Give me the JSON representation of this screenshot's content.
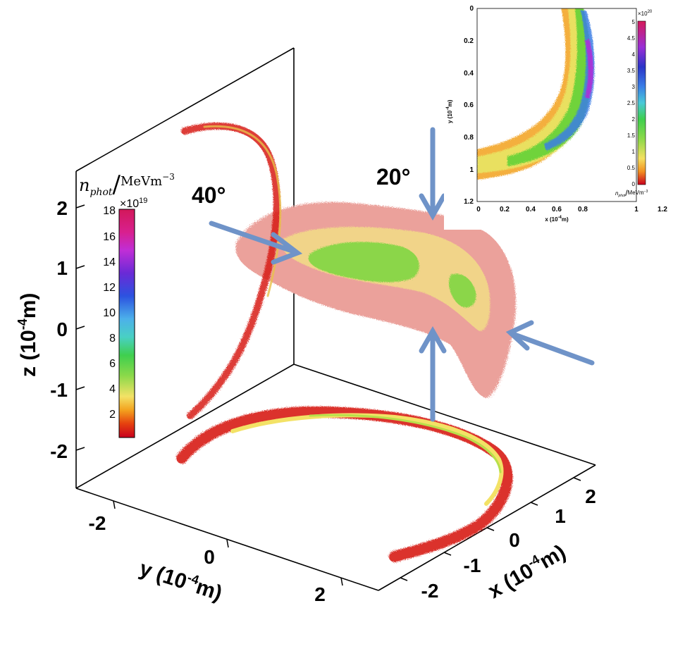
{
  "colors": {
    "arrow": "#6f93c8",
    "rainbow": [
      "#c8001e",
      "#e23a10",
      "#f07a14",
      "#f6b424",
      "#f2e26a",
      "#b8e04a",
      "#6fd33a",
      "#37c957",
      "#39c6b8",
      "#44b6e8",
      "#3a7ee6",
      "#2a3ad0",
      "#6b2ad8",
      "#b02fd8",
      "#d42aa8",
      "#d4205a"
    ],
    "pink_cloud": "#eba19b",
    "yellow_cloud": "#f1d489",
    "green_core": "#8bd64a"
  },
  "chart_data": [
    {
      "type": "scatter",
      "description_kind": "3d_photon_density",
      "xlabel_main": "x (10",
      "xlabel_exp": "-4",
      "xlabel_tail": "m)",
      "ylabel_main": "y (10",
      "ylabel_exp": "-4",
      "ylabel_tail": "m)",
      "zlabel_main": "z (10",
      "zlabel_exp": "-4",
      "zlabel_tail": "m)",
      "x_ticks": [
        "-2",
        "-1",
        "0",
        "1",
        "2"
      ],
      "y_ticks": [
        "-2",
        "0",
        "2"
      ],
      "z_ticks": [
        "2",
        "1",
        "0",
        "-1",
        "-2"
      ],
      "xlim": [
        -2.5,
        2.5
      ],
      "ylim": [
        -2.5,
        2.5
      ],
      "zlim": [
        -2.5,
        2.5
      ],
      "annotations": [
        "40°",
        "20°"
      ],
      "colorbar": {
        "label_symbol": "n",
        "label_sub": "phot",
        "label_unit": "MeVm",
        "label_unit_exp": "−3",
        "multiplier": "×10",
        "multiplier_exp": "19",
        "ticks": [
          "18",
          "16",
          "14",
          "12",
          "10",
          "8",
          "6",
          "4",
          "2"
        ],
        "range": [
          0,
          18
        ]
      }
    },
    {
      "type": "heatmap",
      "title": "",
      "xlabel_main": "x (10",
      "xlabel_exp": "-4",
      "xlabel_tail": "m)",
      "ylabel_main": "y (10",
      "ylabel_exp": "-4",
      "ylabel_tail": "m)",
      "x_ticks": [
        "0",
        "0.2",
        "0.4",
        "0.6",
        "0.8",
        "1",
        "1.2"
      ],
      "y_ticks": [
        "0",
        "0.2",
        "0.4",
        "0.6",
        "0.8",
        "1",
        "1.2"
      ],
      "xlim": [
        0,
        1.2
      ],
      "ylim": [
        0,
        1.2
      ],
      "y_reversed": true,
      "colorbar": {
        "label_symbol": "n",
        "label_sub": "phot",
        "label_unit": "MeVm",
        "label_unit_exp": "−3",
        "multiplier": "×10",
        "multiplier_exp": "20",
        "ticks": [
          "5",
          "4.5",
          "4",
          "3.5",
          "3",
          "2.5",
          "2",
          "1.5",
          "1",
          "0.5",
          "0"
        ],
        "range": [
          0,
          5
        ]
      }
    }
  ]
}
